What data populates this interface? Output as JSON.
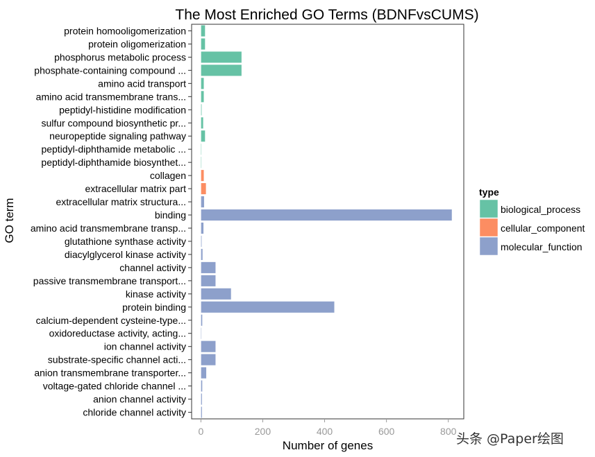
{
  "chart_data": {
    "type": "bar",
    "orientation": "horizontal",
    "title": "The Most Enriched GO Terms (BDNFvsCUMS)",
    "xlabel": "Number of genes",
    "ylabel": "GO term",
    "xlim": [
      -30,
      850
    ],
    "xticks": [
      0,
      200,
      400,
      600,
      800
    ],
    "grid": false,
    "legend": {
      "title": "type",
      "position": "right",
      "entries": [
        {
          "name": "biological_process",
          "color": "#66c2a5"
        },
        {
          "name": "cellular_component",
          "color": "#fc8d62"
        },
        {
          "name": "molecular_function",
          "color": "#8da0cb"
        }
      ]
    },
    "categories": [
      "protein homooligomerization",
      "protein oligomerization",
      "phosphorus metabolic process",
      "phosphate-containing compound ...",
      "amino acid transport",
      "amino acid transmembrane trans...",
      "peptidyl-histidine modification",
      "sulfur compound biosynthetic pr...",
      "neuropeptide signaling pathway",
      "peptidyl-diphthamide metabolic ...",
      "peptidyl-diphthamide biosynthet...",
      "collagen",
      "extracellular matrix part",
      "extracellular matrix structura...",
      "binding",
      "amino acid transmembrane transp...",
      "glutathione synthase activity",
      "diacylglycerol kinase activity",
      "channel activity",
      "passive transmembrane transport...",
      "kinase activity",
      "protein binding",
      "calcium-dependent cysteine-type...",
      "oxidoreductase activity, acting...",
      "ion channel activity",
      "substrate-specific channel acti...",
      "anion transmembrane transporter...",
      "voltage-gated chloride channel ...",
      "anion channel activity",
      "chloride channel activity"
    ],
    "values": [
      14,
      14,
      132,
      132,
      10,
      10,
      3,
      8,
      14,
      2,
      2,
      10,
      17,
      11,
      812,
      9,
      3,
      6,
      48,
      48,
      98,
      432,
      5,
      2,
      48,
      48,
      18,
      5,
      4,
      4
    ],
    "types": [
      "biological_process",
      "biological_process",
      "biological_process",
      "biological_process",
      "biological_process",
      "biological_process",
      "biological_process",
      "biological_process",
      "biological_process",
      "biological_process",
      "biological_process",
      "cellular_component",
      "cellular_component",
      "molecular_function",
      "molecular_function",
      "molecular_function",
      "molecular_function",
      "molecular_function",
      "molecular_function",
      "molecular_function",
      "molecular_function",
      "molecular_function",
      "molecular_function",
      "molecular_function",
      "molecular_function",
      "molecular_function",
      "molecular_function",
      "molecular_function",
      "molecular_function",
      "molecular_function"
    ]
  },
  "watermark": "头条 @Paper绘图"
}
